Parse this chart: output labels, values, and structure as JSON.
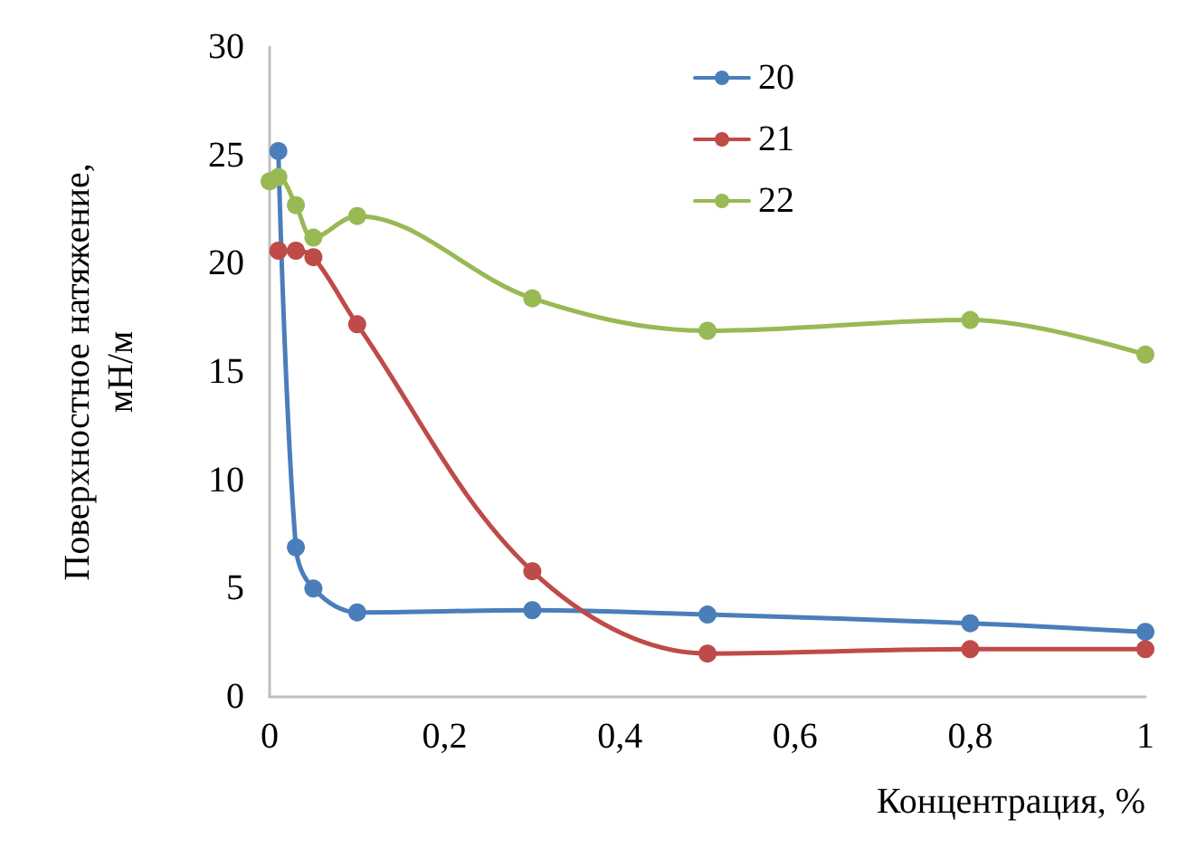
{
  "chart_data": {
    "type": "line",
    "xlabel": "Концентрация, %",
    "ylabel": "Поверхностное натяжение,\nмН/м",
    "x": [
      0,
      0.01,
      0.03,
      0.05,
      0.1,
      0.3,
      0.5,
      0.8,
      1
    ],
    "series": [
      {
        "name": "20",
        "color": "#4a7ebb",
        "values": [
          null,
          25.2,
          6.9,
          5.0,
          3.9,
          4.0,
          3.8,
          3.4,
          3.0
        ]
      },
      {
        "name": "21",
        "color": "#be4b48",
        "values": [
          null,
          20.6,
          20.6,
          20.3,
          17.2,
          5.8,
          2.0,
          2.2,
          2.2
        ]
      },
      {
        "name": "22",
        "color": "#98b954",
        "values": [
          23.8,
          24.0,
          22.7,
          21.2,
          22.2,
          18.4,
          16.9,
          17.4,
          15.8
        ]
      }
    ],
    "xlim": [
      0,
      1
    ],
    "xticks": [
      0,
      {
        "value": 0.2,
        "label": "0,2"
      },
      {
        "value": 0.4,
        "label": "0,4"
      },
      {
        "value": 0.6,
        "label": "0,6"
      },
      {
        "value": 0.8,
        "label": "0,8"
      },
      1
    ],
    "ylim": [
      0,
      30
    ],
    "yticks": [
      0,
      5,
      10,
      15,
      20,
      25,
      30
    ],
    "grid": false,
    "legend": "top",
    "marker": "circle",
    "line_style": "solid"
  }
}
